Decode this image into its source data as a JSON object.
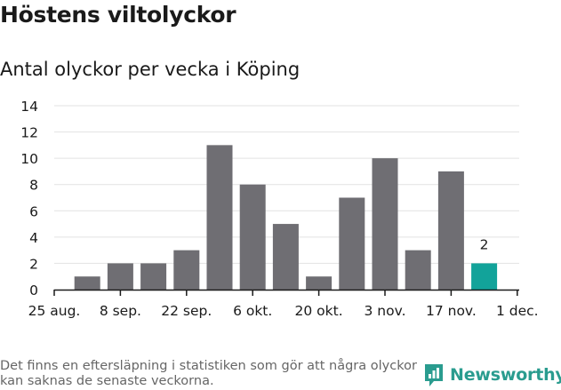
{
  "title": "Höstens viltolyckor",
  "subtitle": "Antal olyckor per vecka i Köping",
  "footer_note": "Det finns en eftersläpning i statistiken som gör att några olyckor kan saknas de senaste veckorna.",
  "brand": {
    "name": "Newsworthy",
    "icon": "newsworthy-logo-icon",
    "color": "#2a9c8f"
  },
  "chart_data": {
    "type": "bar",
    "title": "Antal olyckor per vecka i Köping",
    "xlabel": "",
    "ylabel": "",
    "ylim": [
      0,
      14
    ],
    "yticks": [
      0,
      2,
      4,
      6,
      8,
      10,
      12,
      14
    ],
    "grid": true,
    "bar_color": "#6f6e73",
    "highlight_color": "#12a39a",
    "x_tick_labels": [
      "25 aug.",
      "8 sep.",
      "22 sep.",
      "6 okt.",
      "20 okt.",
      "3 nov.",
      "17 nov.",
      "1 dec."
    ],
    "values": [
      1,
      2,
      2,
      3,
      11,
      8,
      5,
      1,
      7,
      10,
      3,
      9,
      2
    ],
    "highlight_index": 12,
    "data_labels": [
      {
        "index": 12,
        "text": "2"
      }
    ]
  }
}
